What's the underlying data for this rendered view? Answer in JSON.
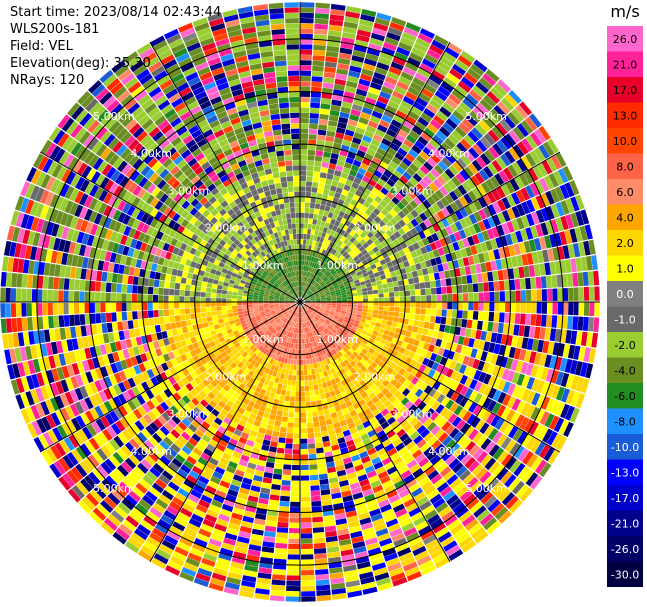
{
  "info": {
    "start_time": "Start time: 2023/08/14 02:43:44",
    "instrument": "WLS200s-181",
    "field": "Field: VEL",
    "elevation": "Elevation(deg): 35.30",
    "nrays": "NRays: 120"
  },
  "chart_data": {
    "type": "heatmap",
    "subtype": "ppi-polar",
    "field": "VEL",
    "nrays": 120,
    "max_range_km": 5.7,
    "range_rings_km": [
      1,
      2,
      3,
      4,
      5
    ],
    "ring_labels": [
      "1.00km",
      "2.00km",
      "3.00km",
      "4.00km",
      "5.00km"
    ],
    "spoke_angles_deg": [
      0,
      30,
      60,
      90,
      120,
      150,
      180,
      210,
      240,
      270,
      300,
      330
    ],
    "colorbar": {
      "unit": "m/s",
      "ticks": [
        "26.0",
        "21.0",
        "17.0",
        "13.0",
        "10.0",
        "8.0",
        "6.0",
        "4.0",
        "2.0",
        "1.0",
        "0.0",
        "-1.0",
        "-2.0",
        "-4.0",
        "-6.0",
        "-8.0",
        "-10.0",
        "-13.0",
        "-17.0",
        "-21.0",
        "-26.0",
        "-30.0"
      ],
      "colors": [
        "#ff66cc",
        "#ff2299",
        "#e8002a",
        "#ff2a00",
        "#ff4500",
        "#ff6347",
        "#ff8c69",
        "#ffa500",
        "#ffd700",
        "#ffff00",
        "#808080",
        "#696969",
        "#9acd32",
        "#6b8e23",
        "#228b22",
        "#1e90ff",
        "#1a5cd6",
        "#0000ff",
        "#0000cd",
        "#00008b",
        "#000066",
        "#000040"
      ]
    },
    "sectors": [
      {
        "from_deg": 90,
        "to_deg": 270,
        "near_range_km": 1.2,
        "near_value": 6.0,
        "mid_value": 2.0,
        "far_value": 1.0
      },
      {
        "from_deg": 270,
        "to_deg": 90,
        "near_range_km": 1.0,
        "near_value": -6.0,
        "mid_value": -2.0,
        "far_value": -4.0
      }
    ]
  }
}
